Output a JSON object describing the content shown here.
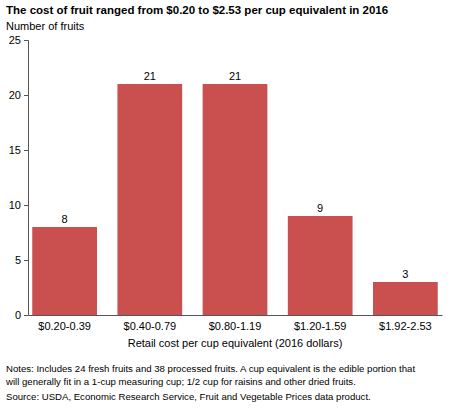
{
  "chart_data": {
    "type": "bar",
    "title": "The cost of fruit ranged from $0.20 to $2.53 per cup equivalent in 2016",
    "y_label": "Number of fruits",
    "x_label": "Retail cost per cup equivalent (2016 dollars)",
    "categories": [
      "$0.20-0.39",
      "$0.40-0.79",
      "$0.80-1.19",
      "$1.20-1.59",
      "$1.92-2.53"
    ],
    "values": [
      8,
      21,
      21,
      9,
      3
    ],
    "color": "#c9504e",
    "ylim": [
      0,
      25
    ],
    "yticks": [
      0,
      5,
      10,
      15,
      20,
      25
    ],
    "grid": false,
    "data_labels": true,
    "notes": [
      "Notes: Includes 24 fresh fruits and 38 processed fruits. A cup equivalent is the edible portion that",
      "will generally fit in a 1-cup measuring cup; 1/2 cup for raisins and other dried fruits."
    ],
    "source": "Source: USDA, Economic Research Service, Fruit and Vegetable Prices data product."
  }
}
